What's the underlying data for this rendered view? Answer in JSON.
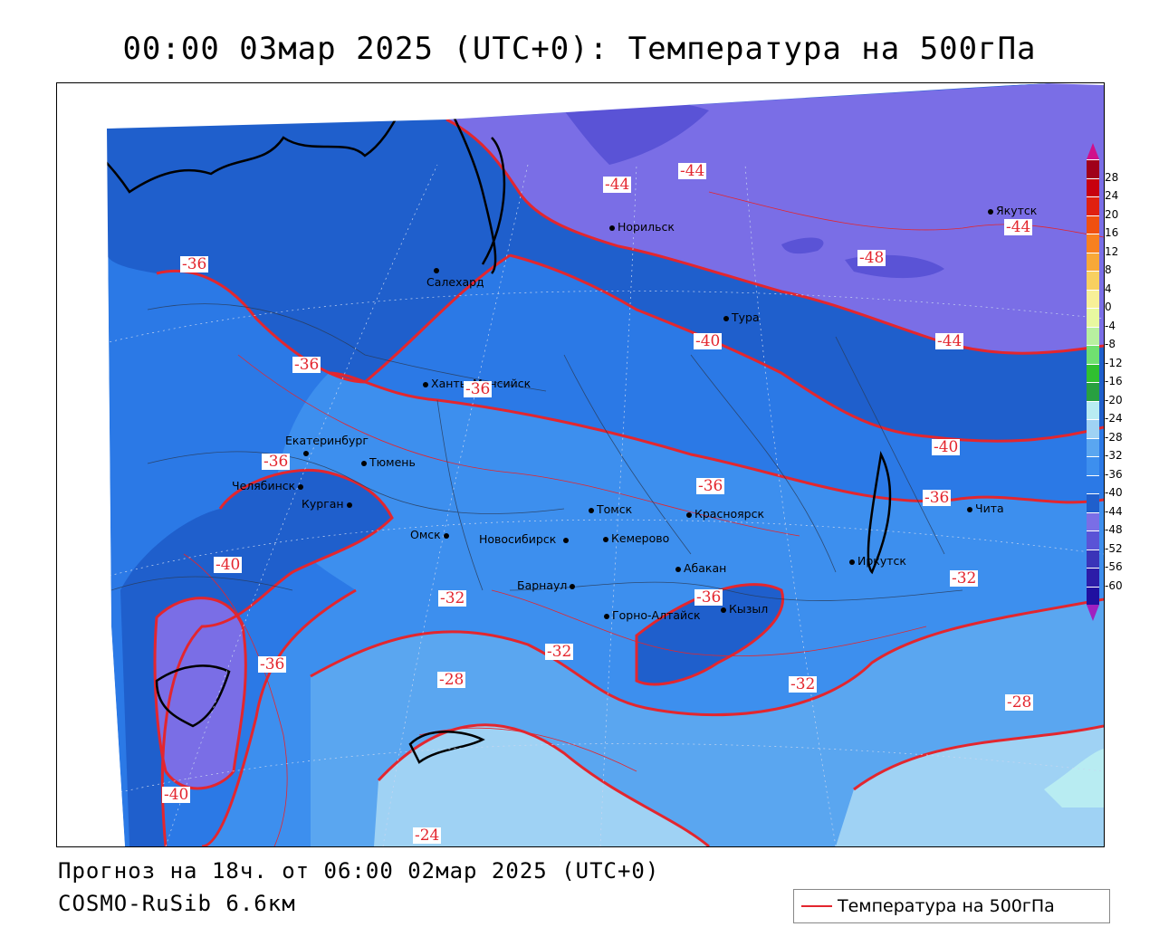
{
  "title": "00:00 03мар 2025 (UTC+0): Температура на 500гПа",
  "footer": {
    "forecast": "Прогноз на 18ч. от 06:00 02мар 2025 (UTC+0)",
    "model": "COSMO-RuSib 6.6км"
  },
  "legend": {
    "label": "Температура на 500гПа",
    "line_color": "#e3262e"
  },
  "colors": {
    "c_m48": "#5a53d6",
    "c_m44": "#7a6ee6",
    "c_m40": "#1f5fcc",
    "c_m36": "#2b79e6",
    "c_m32": "#3d8fee",
    "c_m28": "#5aa6f0",
    "c_m24": "#9fd2f4",
    "c_m20": "#b8ecf2",
    "contour": "#e3262e"
  },
  "cities": [
    {
      "name": "Якутск"
    },
    {
      "name": "Норильск"
    },
    {
      "name": "Салехард"
    },
    {
      "name": "Тура"
    },
    {
      "name": "Ханты-Мансийск"
    },
    {
      "name": "Екатеринбург"
    },
    {
      "name": "Тюмень"
    },
    {
      "name": "Челябинск"
    },
    {
      "name": "Курган"
    },
    {
      "name": "Омск"
    },
    {
      "name": "Новосибирск"
    },
    {
      "name": "Томск"
    },
    {
      "name": "Кемерово"
    },
    {
      "name": "Красноярск"
    },
    {
      "name": "Абакан"
    },
    {
      "name": "Барнаул"
    },
    {
      "name": "Горно-Алтайск"
    },
    {
      "name": "Кызыл"
    },
    {
      "name": "Иркутск"
    },
    {
      "name": "Чита"
    }
  ],
  "contour_labels": [
    "-44",
    "-44",
    "-44",
    "-48",
    "-44",
    "-40",
    "-36",
    "-36",
    "-36",
    "-36",
    "-40",
    "-36",
    "-40",
    "-36",
    "-32",
    "-36",
    "-32",
    "-32",
    "-36",
    "-32",
    "-28",
    "-28",
    "-40",
    "-24"
  ],
  "scale": {
    "ticks": [
      "28",
      "24",
      "20",
      "16",
      "12",
      "8",
      "4",
      "0",
      "-4",
      "-8",
      "-12",
      "-16",
      "-20",
      "-24",
      "-28",
      "-32",
      "-36",
      "-40",
      "-44",
      "-48",
      "-52",
      "-56",
      "-60"
    ],
    "colors": [
      "#a0001a",
      "#c8000f",
      "#e02010",
      "#f05010",
      "#f88020",
      "#f8a838",
      "#f8d060",
      "#f8f098",
      "#e8f8a0",
      "#b8f0a0",
      "#70e070",
      "#30c030",
      "#28a040",
      "#b8ecf2",
      "#9fd2f4",
      "#5aa6f0",
      "#3d8fee",
      "#2b79e6",
      "#1f5fcc",
      "#7a6ee6",
      "#5a53d6",
      "#3a34b8",
      "#2c1ca8",
      "#2010a0"
    ]
  }
}
